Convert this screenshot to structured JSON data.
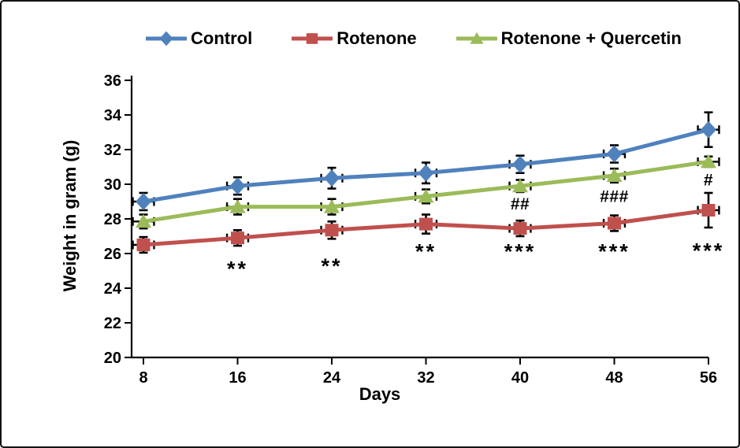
{
  "figure": {
    "background": "#ffffff",
    "border_color": "#111111"
  },
  "chart_data": {
    "type": "line",
    "title": "",
    "xlabel": "Days",
    "ylabel": "Weight in gram (g)",
    "x": [
      8,
      16,
      24,
      32,
      40,
      48,
      56
    ],
    "xlim": [
      7,
      56
    ],
    "ylim": [
      20,
      36
    ],
    "yticks": [
      20,
      22,
      24,
      26,
      28,
      30,
      32,
      34,
      36
    ],
    "grid": false,
    "legend_position": "top",
    "axis_color": "#000000",
    "error_bar_color": "#000000",
    "series": [
      {
        "name": "Control",
        "color": "#4F81BD",
        "marker": "diamond",
        "values": [
          29.0,
          29.9,
          30.35,
          30.65,
          31.15,
          31.75,
          33.15
        ],
        "yerr": [
          0.5,
          0.5,
          0.6,
          0.6,
          0.5,
          0.5,
          1.0
        ],
        "xerr": 0.9,
        "annotations": []
      },
      {
        "name": "Rotenone",
        "color": "#C0504D",
        "marker": "square",
        "values": [
          26.5,
          26.9,
          27.35,
          27.7,
          27.45,
          27.75,
          28.5
        ],
        "yerr": [
          0.45,
          0.45,
          0.5,
          0.55,
          0.45,
          0.45,
          1.0
        ],
        "xerr": 0.9,
        "annotations": [
          {
            "x": 16,
            "y": 25.3,
            "text": "**"
          },
          {
            "x": 24,
            "y": 25.45,
            "text": "**"
          },
          {
            "x": 32,
            "y": 26.3,
            "text": "**"
          },
          {
            "x": 40,
            "y": 26.3,
            "text": "***"
          },
          {
            "x": 48,
            "y": 26.3,
            "text": "***"
          },
          {
            "x": 56,
            "y": 26.35,
            "text": "***"
          }
        ]
      },
      {
        "name": "Rotenone + Quercetin",
        "color": "#9BBB59",
        "marker": "triangle",
        "values": [
          27.85,
          28.7,
          28.7,
          29.3,
          29.9,
          30.5,
          31.3
        ],
        "yerr": [
          0.4,
          0.45,
          0.45,
          0.4,
          0.35,
          0.4,
          0.3
        ],
        "xerr": 0.9,
        "annotations": [
          {
            "x": 40,
            "y": 28.9,
            "text": "##"
          },
          {
            "x": 48,
            "y": 29.35,
            "text": "###"
          },
          {
            "x": 56,
            "y": 30.3,
            "text": "#"
          }
        ]
      }
    ]
  }
}
